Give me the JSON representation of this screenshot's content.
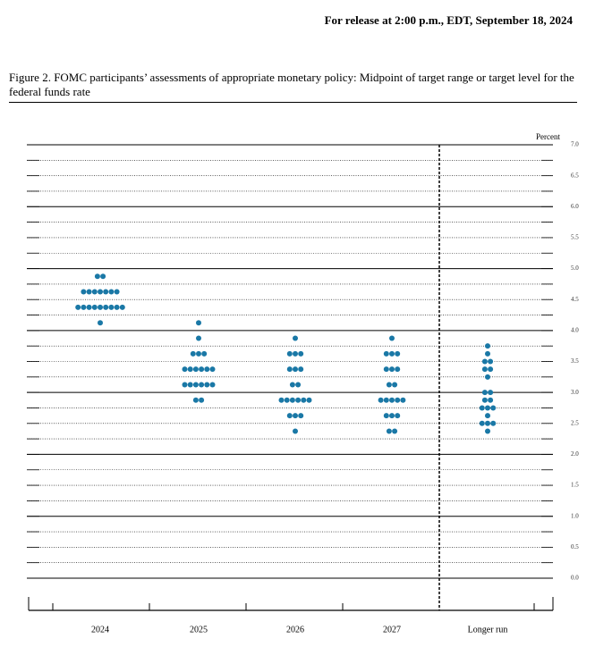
{
  "header": "For release at 2:00 p.m., EDT, September 18, 2024",
  "chart_data": {
    "type": "dot",
    "title": "Figure 2.  FOMC participants’ assessments of appropriate monetary policy:  Midpoint of target range or target level for the federal funds rate",
    "y_label": "Percent",
    "categories": [
      "2024",
      "2025",
      "2026",
      "2027",
      "Longer run"
    ],
    "values": [
      [
        4.875,
        4.875,
        4.625,
        4.625,
        4.625,
        4.625,
        4.625,
        4.625,
        4.625,
        4.375,
        4.375,
        4.375,
        4.375,
        4.375,
        4.375,
        4.375,
        4.375,
        4.375,
        4.125
      ],
      [
        4.125,
        3.875,
        3.625,
        3.625,
        3.625,
        3.375,
        3.375,
        3.375,
        3.375,
        3.375,
        3.375,
        3.125,
        3.125,
        3.125,
        3.125,
        3.125,
        3.125,
        2.875,
        2.875
      ],
      [
        3.875,
        3.625,
        3.625,
        3.625,
        3.375,
        3.375,
        3.375,
        3.125,
        3.125,
        2.875,
        2.875,
        2.875,
        2.875,
        2.875,
        2.875,
        2.625,
        2.625,
        2.625,
        2.375
      ],
      [
        3.875,
        3.625,
        3.625,
        3.625,
        3.375,
        3.375,
        3.375,
        3.125,
        3.125,
        2.875,
        2.875,
        2.875,
        2.875,
        2.875,
        2.625,
        2.625,
        2.625,
        2.375,
        2.375
      ],
      [
        3.75,
        3.625,
        3.5,
        3.5,
        3.375,
        3.375,
        3.25,
        3.0,
        3.0,
        2.875,
        2.875,
        2.75,
        2.75,
        2.75,
        2.625,
        2.5,
        2.5,
        2.5,
        2.375
      ]
    ],
    "color": "#1a78a6",
    "ylim": [
      0,
      7
    ],
    "yticks": [
      {
        "value": 0,
        "label": "0.0"
      },
      {
        "value": 0.5,
        "label": "0.5"
      },
      {
        "value": 1,
        "label": "1.0"
      },
      {
        "value": 1.5,
        "label": "1.5"
      },
      {
        "value": 2,
        "label": "2.0"
      },
      {
        "value": 2.5,
        "label": "2.5"
      },
      {
        "value": 3,
        "label": "3.0"
      },
      {
        "value": 3.5,
        "label": "3.5"
      },
      {
        "value": 4,
        "label": "4.0"
      },
      {
        "value": 4.5,
        "label": "4.5"
      },
      {
        "value": 5,
        "label": "5.0"
      },
      {
        "value": 5.5,
        "label": "5.5"
      },
      {
        "value": 6,
        "label": "6.0"
      },
      {
        "value": 6.5,
        "label": "6.5"
      },
      {
        "value": 7,
        "label": "7.0"
      }
    ],
    "minor_grid": [
      0.25,
      0.75,
      1.25,
      1.75,
      2.25,
      2.75,
      3.25,
      3.75,
      4.25,
      4.75,
      5.25,
      5.75,
      6.25,
      6.75
    ],
    "grid": true
  }
}
